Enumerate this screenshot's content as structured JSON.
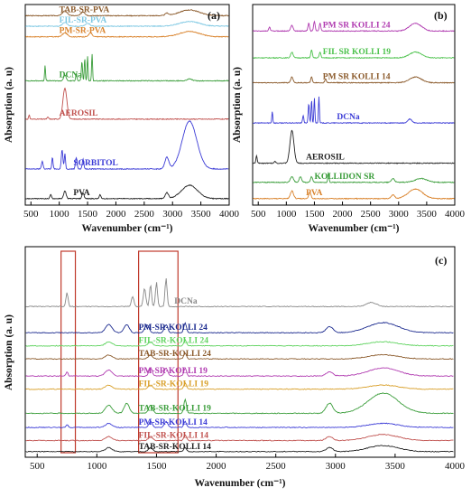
{
  "chart_data": [
    {
      "panel_label": "(a)",
      "type": "line",
      "xlabel": "Wavenumber (cm⁻¹)",
      "ylabel": "Absorption (a. u)",
      "xlim": [
        400,
        4000
      ],
      "xticks": [
        500,
        1000,
        1500,
        2000,
        2500,
        3000,
        3500,
        4000
      ],
      "series": [
        {
          "name": "TAB-SR-PVA",
          "color": "#8b5a2b",
          "offset": 0.97,
          "peaks": [
            [
              1100,
              0.025,
              60
            ],
            [
              1420,
              0.02,
              50
            ],
            [
              2900,
              0.012,
              40
            ],
            [
              3300,
              0.03,
              250
            ]
          ]
        },
        {
          "name": "FIL-SR-PVA",
          "color": "#7ec8e3",
          "offset": 0.915,
          "peaks": [
            [
              1100,
              0.02,
              60
            ],
            [
              1500,
              0.015,
              60
            ],
            [
              3300,
              0.025,
              250
            ]
          ]
        },
        {
          "name": "PM-SR-PVA",
          "color": "#d9822b",
          "offset": 0.86,
          "peaks": [
            [
              1100,
              0.02,
              60
            ],
            [
              1550,
              0.02,
              40
            ],
            [
              3300,
              0.028,
              250
            ]
          ]
        },
        {
          "name": "DCNa",
          "color": "#3a9d3a",
          "offset": 0.63,
          "peaks": [
            [
              750,
              0.08,
              12
            ],
            [
              1100,
              0.03,
              30
            ],
            [
              1300,
              0.04,
              15
            ],
            [
              1400,
              0.1,
              15
            ],
            [
              1450,
              0.12,
              12
            ],
            [
              1500,
              0.13,
              12
            ],
            [
              1580,
              0.14,
              12
            ],
            [
              3300,
              0.01,
              60
            ]
          ]
        },
        {
          "name": "AEROSIL",
          "color": "#c0504d",
          "offset": 0.43,
          "peaks": [
            [
              470,
              0.02,
              15
            ],
            [
              800,
              0.01,
              20
            ],
            [
              1100,
              0.16,
              50
            ]
          ]
        },
        {
          "name": "SORBITOL",
          "color": "#3b3bd6",
          "offset": 0.17,
          "peaks": [
            [
              700,
              0.04,
              20
            ],
            [
              880,
              0.06,
              15
            ],
            [
              1050,
              0.1,
              20
            ],
            [
              1100,
              0.08,
              15
            ],
            [
              1300,
              0.06,
              20
            ],
            [
              1420,
              0.05,
              20
            ],
            [
              2900,
              0.06,
              50
            ],
            [
              3300,
              0.25,
              180
            ]
          ]
        },
        {
          "name": "PVA",
          "color": "#222222",
          "offset": 0.015,
          "peaks": [
            [
              850,
              0.02,
              20
            ],
            [
              1100,
              0.04,
              30
            ],
            [
              1420,
              0.03,
              25
            ],
            [
              1720,
              0.02,
              20
            ],
            [
              2900,
              0.03,
              40
            ],
            [
              3300,
              0.07,
              200
            ]
          ]
        }
      ]
    },
    {
      "panel_label": "(b)",
      "type": "line",
      "xlabel": "Wavenumber (cm⁻¹)",
      "ylabel": "Absorption (a. u)",
      "xlim": [
        400,
        4000
      ],
      "xticks": [
        500,
        1000,
        1500,
        2000,
        2500,
        3000,
        3500,
        4000
      ],
      "series": [
        {
          "name": "PM SR KOLLI 24",
          "color": "#b03ab0",
          "offset": 0.89,
          "peaks": [
            [
              700,
              0.02,
              20
            ],
            [
              1100,
              0.03,
              30
            ],
            [
              1400,
              0.04,
              20
            ],
            [
              1500,
              0.05,
              20
            ],
            [
              1600,
              0.04,
              20
            ],
            [
              3300,
              0.04,
              150
            ]
          ]
        },
        {
          "name": "FIL SR KOLLI 19",
          "color": "#4cc24c",
          "offset": 0.75,
          "peaks": [
            [
              1100,
              0.03,
              30
            ],
            [
              1450,
              0.04,
              20
            ],
            [
              1600,
              0.03,
              20
            ],
            [
              3300,
              0.03,
              150
            ]
          ]
        },
        {
          "name": "PM SR KOLLI 14",
          "color": "#8b5a2b",
          "offset": 0.62,
          "peaks": [
            [
              1100,
              0.03,
              30
            ],
            [
              1450,
              0.03,
              20
            ],
            [
              1700,
              0.02,
              20
            ],
            [
              3300,
              0.03,
              150
            ]
          ]
        },
        {
          "name": "DCNa",
          "color": "#3b3bd6",
          "offset": 0.41,
          "peaks": [
            [
              750,
              0.06,
              12
            ],
            [
              1300,
              0.04,
              15
            ],
            [
              1400,
              0.1,
              15
            ],
            [
              1450,
              0.12,
              12
            ],
            [
              1500,
              0.13,
              12
            ],
            [
              1580,
              0.14,
              12
            ],
            [
              3200,
              0.02,
              50
            ]
          ]
        },
        {
          "name": "AEROSIL",
          "color": "#222222",
          "offset": 0.2,
          "peaks": [
            [
              470,
              0.04,
              15
            ],
            [
              800,
              0.01,
              20
            ],
            [
              1100,
              0.17,
              50
            ]
          ]
        },
        {
          "name": "KOLLIDON SR",
          "color": "#3a9d3a",
          "offset": 0.1,
          "peaks": [
            [
              1100,
              0.03,
              40
            ],
            [
              1250,
              0.03,
              30
            ],
            [
              1450,
              0.03,
              25
            ],
            [
              1750,
              0.05,
              15
            ],
            [
              2900,
              0.02,
              40
            ],
            [
              3400,
              0.02,
              150
            ]
          ]
        },
        {
          "name": "PVA",
          "color": "#d9822b",
          "offset": 0.015,
          "peaks": [
            [
              1100,
              0.04,
              40
            ],
            [
              1420,
              0.03,
              30
            ],
            [
              2900,
              0.02,
              40
            ],
            [
              3300,
              0.05,
              180
            ]
          ]
        }
      ]
    },
    {
      "panel_label": "(c)",
      "type": "line",
      "xlabel": "Wavenumber (cm⁻¹)",
      "ylabel": "Absorption (a. u)",
      "xlim": [
        400,
        4000
      ],
      "xticks": [
        500,
        1000,
        1500,
        2000,
        2500,
        3000,
        3500,
        4000
      ],
      "highlight_ranges": [
        [
          700,
          820
        ],
        [
          1350,
          1680
        ]
      ],
      "series": [
        {
          "name": "DCNa",
          "color": "#888888",
          "offset": 0.73,
          "peaks": [
            [
              750,
              0.07,
              12
            ],
            [
              1300,
              0.05,
              15
            ],
            [
              1400,
              0.09,
              15
            ],
            [
              1450,
              0.11,
              12
            ],
            [
              1500,
              0.12,
              12
            ],
            [
              1580,
              0.14,
              12
            ],
            [
              3300,
              0.02,
              60
            ]
          ]
        },
        {
          "name": "PM-SR-KOLLI 24",
          "color": "#1c2b8f",
          "offset": 0.6,
          "peaks": [
            [
              1100,
              0.04,
              40
            ],
            [
              1250,
              0.04,
              30
            ],
            [
              1420,
              0.04,
              25
            ],
            [
              1580,
              0.04,
              20
            ],
            [
              1740,
              0.05,
              15
            ],
            [
              2950,
              0.03,
              40
            ],
            [
              3400,
              0.05,
              180
            ]
          ]
        },
        {
          "name": "FIL-SR-KOLLI 24",
          "color": "#5fd35f",
          "offset": 0.535,
          "peaks": [
            [
              1100,
              0.02,
              40
            ],
            [
              1450,
              0.02,
              25
            ],
            [
              1740,
              0.03,
              15
            ],
            [
              3400,
              0.02,
              180
            ]
          ]
        },
        {
          "name": "TAB-SR-KOLLI 24",
          "color": "#8b5a2b",
          "offset": 0.47,
          "peaks": [
            [
              1100,
              0.02,
              40
            ],
            [
              1450,
              0.02,
              25
            ],
            [
              1740,
              0.03,
              15
            ],
            [
              3400,
              0.02,
              180
            ]
          ]
        },
        {
          "name": "PM-SR-KOLLI 19",
          "color": "#b03ab0",
          "offset": 0.385,
          "peaks": [
            [
              750,
              0.02,
              12
            ],
            [
              1100,
              0.03,
              40
            ],
            [
              1450,
              0.04,
              20
            ],
            [
              1580,
              0.04,
              20
            ],
            [
              1740,
              0.04,
              15
            ],
            [
              2950,
              0.02,
              40
            ],
            [
              3400,
              0.04,
              180
            ]
          ]
        },
        {
          "name": "FIL-SR-KOLLI 19",
          "color": "#d9a02b",
          "offset": 0.32,
          "peaks": [
            [
              1100,
              0.02,
              40
            ],
            [
              1450,
              0.02,
              25
            ],
            [
              1740,
              0.03,
              15
            ],
            [
              3400,
              0.02,
              180
            ]
          ]
        },
        {
          "name": "TAB-SR-KOLLI 19",
          "color": "#3a9d3a",
          "offset": 0.2,
          "peaks": [
            [
              1100,
              0.04,
              40
            ],
            [
              1250,
              0.05,
              30
            ],
            [
              1450,
              0.04,
              25
            ],
            [
              1740,
              0.07,
              15
            ],
            [
              2950,
              0.05,
              40
            ],
            [
              3400,
              0.1,
              180
            ]
          ]
        },
        {
          "name": "PM-SR-KOLLI 14",
          "color": "#3b3bd6",
          "offset": 0.13,
          "peaks": [
            [
              750,
              0.015,
              12
            ],
            [
              1100,
              0.02,
              40
            ],
            [
              1450,
              0.03,
              20
            ],
            [
              1580,
              0.03,
              20
            ],
            [
              1740,
              0.03,
              15
            ],
            [
              3400,
              0.02,
              180
            ]
          ]
        },
        {
          "name": "FIL-SR-KOLLI 14",
          "color": "#c0504d",
          "offset": 0.065,
          "peaks": [
            [
              1100,
              0.02,
              40
            ],
            [
              1450,
              0.02,
              25
            ],
            [
              1740,
              0.03,
              15
            ],
            [
              2950,
              0.02,
              40
            ],
            [
              3400,
              0.03,
              180
            ]
          ]
        },
        {
          "name": "TAB-SR-KOLLI 14",
          "color": "#222222",
          "offset": 0.01,
          "peaks": [
            [
              1100,
              0.02,
              40
            ],
            [
              1450,
              0.02,
              25
            ],
            [
              1740,
              0.02,
              15
            ],
            [
              2950,
              0.02,
              40
            ],
            [
              3400,
              0.03,
              180
            ]
          ]
        }
      ]
    }
  ]
}
